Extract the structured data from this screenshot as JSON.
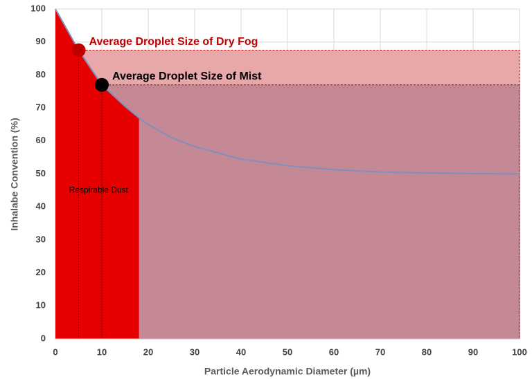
{
  "chart_data": {
    "type": "line",
    "x": [
      0,
      5,
      10,
      15,
      18,
      20,
      25,
      30,
      40,
      50,
      60,
      70,
      80,
      90,
      100
    ],
    "values": [
      100,
      87.5,
      77,
      70.5,
      67,
      65,
      61,
      58.3,
      54.5,
      52.5,
      51.3,
      50.6,
      50.3,
      50.1,
      50
    ],
    "color": "#7f8fc0",
    "xlabel": "Particle Aerodynamic Diameter (µm)",
    "ylabel": "Inhalabe Convention (%)",
    "xlim": [
      0,
      100
    ],
    "xticks": [
      0,
      10,
      20,
      30,
      40,
      50,
      60,
      70,
      80,
      90,
      100
    ],
    "ylim": [
      0,
      100
    ],
    "yticks": [
      0,
      10,
      20,
      30,
      40,
      50,
      60,
      70,
      80,
      90,
      100
    ],
    "grid": true,
    "region": {
      "label": "Respirable Dust",
      "x": [
        0,
        18
      ],
      "color": "#e60000"
    },
    "markers": [
      {
        "label": "Average Droplet Size of Dry Fog",
        "x": 5,
        "y": 87.5,
        "color": "#c00000",
        "fill": "#e8a7a9",
        "border": "#c00000"
      },
      {
        "label": "Average Droplet Size of Mist",
        "x": 10,
        "y": 77,
        "color": "#000000",
        "fill": "rgba(150,100,120,0.44)",
        "border": "#5a1e1e"
      }
    ]
  }
}
